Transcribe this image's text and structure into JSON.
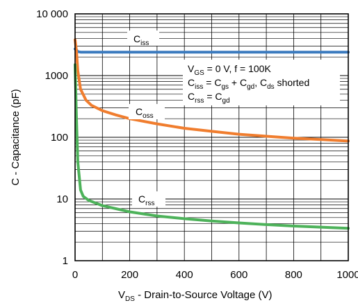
{
  "chart_data": {
    "type": "line",
    "xlabel_main": "V",
    "xlabel_sub": "DS",
    "xlabel_rest": " - Drain-to-Source Voltage (V)",
    "ylabel": "C - Capacitance (pF)",
    "xlim": [
      0,
      1000
    ],
    "ylim": [
      1,
      10000
    ],
    "yscale": "log",
    "grid": true,
    "x_ticks": [
      "0",
      "200",
      "400",
      "600",
      "800",
      "1000"
    ],
    "y_ticks": [
      "1",
      "10",
      "100",
      "1000",
      "10 000"
    ],
    "series": [
      {
        "label_main": "C",
        "label_sub": "iss",
        "color": "#3b7bbf",
        "x": [
          0,
          5,
          10,
          20,
          50,
          100,
          200,
          400,
          600,
          800,
          1000
        ],
        "y": [
          2700,
          2600,
          2450,
          2400,
          2400,
          2400,
          2400,
          2400,
          2400,
          2400,
          2400
        ]
      },
      {
        "label_main": "C",
        "label_sub": "oss",
        "color": "#f07d2e",
        "x": [
          0,
          5,
          10,
          20,
          40,
          60,
          100,
          150,
          200,
          300,
          400,
          500,
          600,
          700,
          800,
          900,
          1000
        ],
        "y": [
          3800,
          2500,
          1200,
          600,
          400,
          330,
          270,
          230,
          200,
          165,
          140,
          125,
          112,
          104,
          97,
          92,
          87
        ]
      },
      {
        "label_main": "C",
        "label_sub": "rss",
        "color": "#4db25a",
        "x": [
          0,
          5,
          10,
          20,
          30,
          50,
          100,
          200,
          300,
          400,
          500,
          600,
          700,
          800,
          900,
          1000
        ],
        "y": [
          1500,
          200,
          40,
          14,
          11,
          9.5,
          7.8,
          6.2,
          5.3,
          4.8,
          4.4,
          4.1,
          3.85,
          3.65,
          3.5,
          3.35
        ]
      }
    ],
    "conditions": {
      "line1": {
        "a": "V",
        "a_sub": "GS",
        "rest": " = 0 V, f = 100K"
      },
      "line2": {
        "a": "C",
        "a_sub": "iss",
        "b": " = C",
        "b_sub": "gs",
        "c": " + C",
        "c_sub": "gd",
        "d": ", C",
        "d_sub": "ds",
        "rest": " shorted"
      },
      "line3": {
        "a": "C",
        "a_sub": "rss",
        "b": " = C",
        "b_sub": "gd"
      }
    }
  }
}
